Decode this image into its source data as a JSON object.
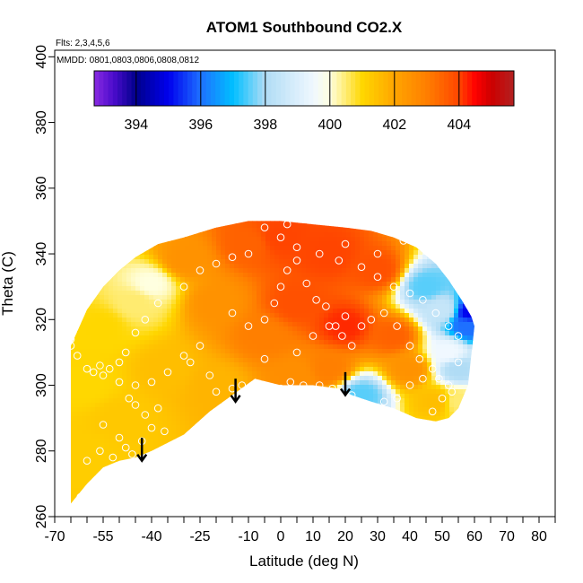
{
  "chart_data": {
    "type": "heatmap",
    "title": "ATOM1 Southbound CO2.X",
    "annotations": [
      "Flts: 2,3,4,5,6",
      "MMDD: 0801,0803,0806,0808,0812"
    ],
    "xlabel": "Latitude (deg N)",
    "ylabel": "Theta (C)",
    "xlim": [
      -70,
      85
    ],
    "ylim": [
      260,
      402
    ],
    "x_ticks": [
      -70,
      -55,
      -40,
      -25,
      -10,
      0,
      10,
      20,
      30,
      40,
      50,
      60,
      70,
      80
    ],
    "x_tick_labels": [
      "-70",
      "-55",
      "-40",
      "-25",
      "-10",
      "0",
      "10",
      "20",
      "30",
      "40",
      "50",
      "60",
      "70",
      "80"
    ],
    "x_minor_step": 5,
    "y_ticks": [
      260,
      280,
      300,
      320,
      340,
      360,
      380,
      400
    ],
    "y_tick_labels": [
      "260",
      "280",
      "300",
      "320",
      "340",
      "360",
      "380",
      "400"
    ],
    "colorbar": {
      "range": [
        392.7,
        405.7
      ],
      "ticks": [
        394,
        396,
        398,
        400,
        402,
        404
      ],
      "tick_labels": [
        "394",
        "396",
        "398",
        "400",
        "402",
        "404"
      ],
      "stops": [
        {
          "value": 392.7,
          "color": "#8a2be2"
        },
        {
          "value": 393.3,
          "color": "#4b0ccc"
        },
        {
          "value": 394.0,
          "color": "#00008b"
        },
        {
          "value": 395.0,
          "color": "#0000ee"
        },
        {
          "value": 396.0,
          "color": "#1e70ff"
        },
        {
          "value": 397.0,
          "color": "#00bfff"
        },
        {
          "value": 398.0,
          "color": "#b0dcf5"
        },
        {
          "value": 399.5,
          "color": "#f0f8ff"
        },
        {
          "value": 400.0,
          "color": "#ffffe0"
        },
        {
          "value": 401.0,
          "color": "#ffd700"
        },
        {
          "value": 402.0,
          "color": "#ffa500"
        },
        {
          "value": 403.0,
          "color": "#ff7f00"
        },
        {
          "value": 404.0,
          "color": "#ff4500"
        },
        {
          "value": 404.5,
          "color": "#ff0000"
        },
        {
          "value": 405.0,
          "color": "#cd0000"
        },
        {
          "value": 405.7,
          "color": "#b22222"
        }
      ]
    },
    "field_boundary": {
      "top": [
        [
          -65,
          312
        ],
        [
          -60,
          323
        ],
        [
          -55,
          330
        ],
        [
          -50,
          335
        ],
        [
          -45,
          339
        ],
        [
          -38,
          343
        ],
        [
          -30,
          345
        ],
        [
          -20,
          348
        ],
        [
          -10,
          350
        ],
        [
          0,
          350
        ],
        [
          10,
          349
        ],
        [
          20,
          348
        ],
        [
          28,
          347
        ],
        [
          35,
          345
        ],
        [
          42,
          342
        ],
        [
          48,
          337
        ],
        [
          52,
          332
        ],
        [
          56,
          326
        ],
        [
          59,
          321
        ],
        [
          60,
          318
        ]
      ],
      "bottom": [
        [
          60,
          318
        ],
        [
          58,
          300
        ],
        [
          55,
          293
        ],
        [
          52,
          290
        ],
        [
          48,
          289
        ],
        [
          42,
          290
        ],
        [
          35,
          293
        ],
        [
          28,
          295
        ],
        [
          22,
          297
        ],
        [
          18,
          299
        ],
        [
          10,
          300
        ],
        [
          0,
          300
        ],
        [
          -8,
          302
        ],
        [
          -15,
          297
        ],
        [
          -22,
          292
        ],
        [
          -30,
          285
        ],
        [
          -40,
          280
        ],
        [
          -45,
          278
        ],
        [
          -50,
          277
        ],
        [
          -55,
          275
        ],
        [
          -60,
          270
        ],
        [
          -65,
          264
        ]
      ]
    },
    "field_anchors": [
      {
        "lat": -40,
        "theta": 331,
        "co2": 400.0
      },
      {
        "lat": -45,
        "theta": 325,
        "co2": 400.5
      },
      {
        "lat": -55,
        "theta": 318,
        "co2": 401.0
      },
      {
        "lat": -60,
        "theta": 300,
        "co2": 401.0
      },
      {
        "lat": -62,
        "theta": 280,
        "co2": 401.2
      },
      {
        "lat": -50,
        "theta": 290,
        "co2": 401.3
      },
      {
        "lat": -35,
        "theta": 305,
        "co2": 401.5
      },
      {
        "lat": -30,
        "theta": 338,
        "co2": 402.5
      },
      {
        "lat": -20,
        "theta": 325,
        "co2": 402.5
      },
      {
        "lat": -20,
        "theta": 300,
        "co2": 401.7
      },
      {
        "lat": -10,
        "theta": 343,
        "co2": 403.5
      },
      {
        "lat": -5,
        "theta": 315,
        "co2": 403.0
      },
      {
        "lat": 0,
        "theta": 345,
        "co2": 404.0
      },
      {
        "lat": 5,
        "theta": 325,
        "co2": 403.8
      },
      {
        "lat": 5,
        "theta": 303,
        "co2": 402.6
      },
      {
        "lat": 15,
        "theta": 340,
        "co2": 404.0
      },
      {
        "lat": 20,
        "theta": 318,
        "co2": 404.2
      },
      {
        "lat": 15,
        "theta": 305,
        "co2": 403.0
      },
      {
        "lat": 30,
        "theta": 335,
        "co2": 403.8
      },
      {
        "lat": 35,
        "theta": 315,
        "co2": 403.5
      },
      {
        "lat": 40,
        "theta": 305,
        "co2": 402.5
      },
      {
        "lat": 25,
        "theta": 297,
        "co2": 397.5
      },
      {
        "lat": 45,
        "theta": 330,
        "co2": 397.5
      },
      {
        "lat": 50,
        "theta": 323,
        "co2": 398.5
      },
      {
        "lat": 52,
        "theta": 310,
        "co2": 399.5
      },
      {
        "lat": 55,
        "theta": 305,
        "co2": 398.0
      },
      {
        "lat": 58,
        "theta": 318,
        "co2": 396.0
      },
      {
        "lat": 59,
        "theta": 322,
        "co2": 395.0
      },
      {
        "lat": 48,
        "theta": 295,
        "co2": 401.5
      },
      {
        "lat": 55,
        "theta": 295,
        "co2": 400.5
      }
    ],
    "observation_points": [
      [
        -65,
        312
      ],
      [
        -65,
        314
      ],
      [
        -63,
        309
      ],
      [
        -60,
        305
      ],
      [
        -58,
        304
      ],
      [
        -56,
        306
      ],
      [
        -55,
        303
      ],
      [
        -53,
        305
      ],
      [
        -50,
        307
      ],
      [
        -50,
        301
      ],
      [
        -47,
        296
      ],
      [
        -45,
        300
      ],
      [
        -45,
        294
      ],
      [
        -42,
        291
      ],
      [
        -40,
        301
      ],
      [
        -38,
        293
      ],
      [
        -35,
        304
      ],
      [
        -30,
        309
      ],
      [
        -28,
        307
      ],
      [
        -25,
        312
      ],
      [
        -22,
        303
      ],
      [
        -20,
        298
      ],
      [
        -15,
        299
      ],
      [
        -12,
        300
      ],
      [
        -8,
        296
      ],
      [
        -5,
        300
      ],
      [
        0,
        299
      ],
      [
        3,
        301
      ],
      [
        7,
        300
      ],
      [
        12,
        300
      ],
      [
        16,
        299
      ],
      [
        22,
        297
      ],
      [
        26,
        294
      ],
      [
        32,
        295
      ],
      [
        36,
        296
      ],
      [
        40,
        300
      ],
      [
        44,
        302
      ],
      [
        47,
        292
      ],
      [
        50,
        296
      ],
      [
        53,
        298
      ],
      [
        -55,
        288
      ],
      [
        -50,
        284
      ],
      [
        -48,
        281
      ],
      [
        -46,
        279
      ],
      [
        -43,
        283
      ],
      [
        -40,
        287
      ],
      [
        -36,
        286
      ],
      [
        -60,
        277
      ],
      [
        -56,
        280
      ],
      [
        -52,
        278
      ],
      [
        -50,
        274
      ],
      [
        -62,
        266
      ],
      [
        -15,
        322
      ],
      [
        -10,
        318
      ],
      [
        -5,
        320
      ],
      [
        -2,
        325
      ],
      [
        0,
        330
      ],
      [
        2,
        335
      ],
      [
        5,
        338
      ],
      [
        8,
        331
      ],
      [
        11,
        326
      ],
      [
        14,
        324
      ],
      [
        17,
        318
      ],
      [
        19,
        315
      ],
      [
        22,
        312
      ],
      [
        25,
        318
      ],
      [
        28,
        320
      ],
      [
        32,
        322
      ],
      [
        36,
        318
      ],
      [
        40,
        312
      ],
      [
        43,
        308
      ],
      [
        47,
        305
      ],
      [
        49,
        302
      ],
      [
        52,
        300
      ],
      [
        55,
        307
      ],
      [
        0,
        345
      ],
      [
        5,
        342
      ],
      [
        12,
        340
      ],
      [
        18,
        338
      ],
      [
        25,
        336
      ],
      [
        30,
        333
      ],
      [
        35,
        330
      ],
      [
        40,
        328
      ],
      [
        44,
        326
      ],
      [
        48,
        322
      ],
      [
        52,
        318
      ],
      [
        55,
        315
      ],
      [
        -30,
        330
      ],
      [
        -25,
        335
      ],
      [
        -20,
        337
      ],
      [
        -15,
        339
      ],
      [
        -10,
        340
      ],
      [
        -38,
        325
      ],
      [
        -42,
        320
      ],
      [
        -45,
        316
      ],
      [
        -48,
        310
      ],
      [
        5,
        310
      ],
      [
        10,
        315
      ],
      [
        15,
        318
      ],
      [
        20,
        321
      ],
      [
        -5,
        308
      ],
      [
        30,
        340
      ],
      [
        38,
        344
      ],
      [
        20,
        343
      ],
      [
        -5,
        348
      ],
      [
        2,
        349
      ]
    ],
    "arrows": [
      {
        "lat": -43,
        "theta_start": 284,
        "theta_end": 277
      },
      {
        "lat": -14,
        "theta_start": 302,
        "theta_end": 295
      },
      {
        "lat": 20,
        "theta_start": 304,
        "theta_end": 297
      }
    ]
  },
  "colors": {
    "background": "#ffffff",
    "axis": "#000000",
    "marker": "#ffffff",
    "arrow": "#000000",
    "no_data": "#ffffff"
  }
}
